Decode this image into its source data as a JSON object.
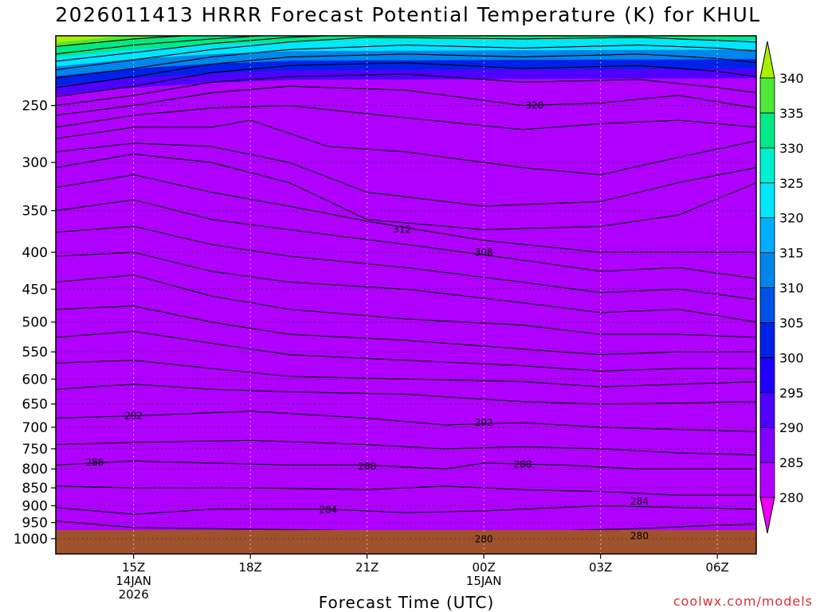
{
  "title": "2026011413 HRRR Forecast Potential Temperature (K) for KHUL",
  "credit": "coolwx.com/models",
  "chart_data": {
    "type": "contour",
    "xlabel": "Forecast Time (UTC)",
    "ylabel": "",
    "x_ticks": [
      {
        "lines": [
          "15Z",
          "14JAN",
          "2026"
        ],
        "hours": 14.0
      },
      {
        "lines": [
          "18Z"
        ],
        "hours": 17.0
      },
      {
        "lines": [
          "21Z"
        ],
        "hours": 20.0
      },
      {
        "lines": [
          "00Z",
          "15JAN"
        ],
        "hours": 23.0
      },
      {
        "lines": [
          "03Z"
        ],
        "hours": 26.0
      },
      {
        "lines": [
          "06Z"
        ],
        "hours": 29.0
      }
    ],
    "xlim_hours": [
      12.0,
      30.0
    ],
    "y_axis": "pressure (hPa), log scale, inverted",
    "y_ticks": [
      250,
      300,
      350,
      400,
      450,
      500,
      550,
      600,
      650,
      700,
      750,
      800,
      850,
      900,
      950,
      1000
    ],
    "ylim": [
      1050,
      200
    ],
    "grid": "dotted",
    "ground_color": "#a0522d",
    "levels": [
      280,
      285,
      290,
      295,
      300,
      305,
      310,
      315,
      320,
      325,
      330,
      335,
      340
    ],
    "colorbar_labels": [
      "280",
      "285",
      "290",
      "295",
      "300",
      "305",
      "310",
      "315",
      "320",
      "325",
      "330",
      "335",
      "340"
    ],
    "colors": [
      "#ee00ff",
      "#b000ff",
      "#8200ff",
      "#5000ff",
      "#1f00ff",
      "#0022e8",
      "#0052e6",
      "#0085ea",
      "#00aeff",
      "#00e6ff",
      "#00f0d2",
      "#00ea87",
      "#4de83a",
      "#a8f000"
    ],
    "isentropes": [
      {
        "theta": 280,
        "points": [
          [
            12,
            982
          ],
          [
            13,
            990
          ],
          [
            14,
            997
          ],
          [
            16,
            1000
          ],
          [
            20,
            1002
          ],
          [
            23,
            1002
          ],
          [
            26,
            999
          ],
          [
            28,
            995
          ],
          [
            29,
            985
          ],
          [
            30,
            982
          ]
        ]
      },
      {
        "theta": 282,
        "points": [
          [
            12,
            945
          ],
          [
            14,
            965
          ],
          [
            17,
            970
          ],
          [
            20,
            975
          ],
          [
            23,
            978
          ],
          [
            25,
            975
          ],
          [
            27,
            968
          ],
          [
            29,
            958
          ],
          [
            30,
            955
          ]
        ]
      },
      {
        "theta": 284,
        "points": [
          [
            12,
            905
          ],
          [
            14,
            925
          ],
          [
            16,
            910
          ],
          [
            19,
            910
          ],
          [
            21,
            920
          ],
          [
            23,
            915
          ],
          [
            26,
            900
          ],
          [
            28,
            905
          ],
          [
            30,
            910
          ]
        ]
      },
      {
        "theta": 286,
        "points": [
          [
            12,
            845
          ],
          [
            14,
            850
          ],
          [
            17,
            850
          ],
          [
            20,
            855
          ],
          [
            22,
            845
          ],
          [
            24,
            855
          ],
          [
            26,
            860
          ],
          [
            28,
            870
          ],
          [
            30,
            870
          ]
        ]
      },
      {
        "theta": 288,
        "points": [
          [
            12,
            790
          ],
          [
            14,
            780
          ],
          [
            16,
            785
          ],
          [
            18,
            790
          ],
          [
            20,
            790
          ],
          [
            22,
            800
          ],
          [
            23,
            785
          ],
          [
            25,
            790
          ],
          [
            27,
            800
          ],
          [
            30,
            800
          ]
        ]
      },
      {
        "theta": 290,
        "points": [
          [
            12,
            740
          ],
          [
            14,
            735
          ],
          [
            17,
            730
          ],
          [
            20,
            740
          ],
          [
            22,
            750
          ],
          [
            24,
            745
          ],
          [
            26,
            750
          ],
          [
            28,
            760
          ],
          [
            30,
            765
          ]
        ]
      },
      {
        "theta": 292,
        "points": [
          [
            12,
            680
          ],
          [
            14,
            675
          ],
          [
            17,
            665
          ],
          [
            20,
            680
          ],
          [
            22,
            695
          ],
          [
            24,
            690
          ],
          [
            26,
            700
          ],
          [
            28,
            705
          ],
          [
            30,
            710
          ]
        ]
      },
      {
        "theta": 294,
        "points": [
          [
            12,
            620
          ],
          [
            14,
            610
          ],
          [
            16,
            620
          ],
          [
            18,
            625
          ],
          [
            21,
            630
          ],
          [
            24,
            645
          ],
          [
            26,
            650
          ],
          [
            28,
            648
          ],
          [
            30,
            645
          ]
        ]
      },
      {
        "theta": 296,
        "points": [
          [
            12,
            570
          ],
          [
            14,
            565
          ],
          [
            16,
            580
          ],
          [
            18,
            595
          ],
          [
            21,
            600
          ],
          [
            24,
            605
          ],
          [
            26,
            615
          ],
          [
            28,
            610
          ],
          [
            30,
            605
          ]
        ]
      },
      {
        "theta": 298,
        "points": [
          [
            12,
            525
          ],
          [
            14,
            515
          ],
          [
            16,
            535
          ],
          [
            18,
            555
          ],
          [
            21,
            565
          ],
          [
            24,
            575
          ],
          [
            26,
            585
          ],
          [
            28,
            580
          ],
          [
            30,
            580
          ]
        ]
      },
      {
        "theta": 300,
        "points": [
          [
            12,
            480
          ],
          [
            14,
            475
          ],
          [
            16,
            500
          ],
          [
            18,
            520
          ],
          [
            21,
            530
          ],
          [
            24,
            545
          ],
          [
            26,
            555
          ],
          [
            28,
            550
          ],
          [
            30,
            550
          ]
        ]
      },
      {
        "theta": 302,
        "points": [
          [
            12,
            440
          ],
          [
            14,
            430
          ],
          [
            16,
            460
          ],
          [
            18,
            480
          ],
          [
            21,
            495
          ],
          [
            24,
            505
          ],
          [
            26,
            520
          ],
          [
            28,
            520
          ],
          [
            30,
            525
          ]
        ]
      },
      {
        "theta": 304,
        "points": [
          [
            12,
            405
          ],
          [
            14,
            400
          ],
          [
            16,
            425
          ],
          [
            18,
            440
          ],
          [
            21,
            450
          ],
          [
            24,
            470
          ],
          [
            26,
            485
          ],
          [
            28,
            480
          ],
          [
            30,
            500
          ]
        ]
      },
      {
        "theta": 306,
        "points": [
          [
            12,
            375
          ],
          [
            14,
            368
          ],
          [
            16,
            390
          ],
          [
            18,
            405
          ],
          [
            21,
            420
          ],
          [
            24,
            440
          ],
          [
            26,
            455
          ],
          [
            28,
            450
          ],
          [
            30,
            465
          ]
        ]
      },
      {
        "theta": 308,
        "points": [
          [
            12,
            350
          ],
          [
            14,
            338
          ],
          [
            16,
            360
          ],
          [
            18,
            372
          ],
          [
            21,
            390
          ],
          [
            24,
            410
          ],
          [
            26,
            425
          ],
          [
            28,
            420
          ],
          [
            30,
            435
          ]
        ]
      },
      {
        "theta": 310,
        "points": [
          [
            12,
            325
          ],
          [
            14,
            312
          ],
          [
            16,
            330
          ],
          [
            18,
            345
          ],
          [
            20,
            362
          ],
          [
            23,
            385
          ],
          [
            26,
            400
          ],
          [
            28,
            400
          ],
          [
            30,
            400
          ]
        ]
      },
      {
        "theta": 312,
        "points": [
          [
            12,
            305
          ],
          [
            14,
            292
          ],
          [
            16,
            300
          ],
          [
            18,
            320
          ],
          [
            20,
            360
          ],
          [
            23,
            372
          ],
          [
            26,
            368
          ],
          [
            28,
            355
          ],
          [
            30,
            320
          ]
        ]
      },
      {
        "theta": 314,
        "points": [
          [
            12,
            290
          ],
          [
            14,
            282
          ],
          [
            16,
            285
          ],
          [
            18,
            300
          ],
          [
            20,
            330
          ],
          [
            23,
            345
          ],
          [
            26,
            340
          ],
          [
            28,
            320
          ],
          [
            30,
            305
          ]
        ]
      },
      {
        "theta": 316,
        "points": [
          [
            12,
            278
          ],
          [
            14,
            268
          ],
          [
            16,
            268
          ],
          [
            17,
            262
          ],
          [
            19,
            285
          ],
          [
            21,
            290
          ],
          [
            24,
            305
          ],
          [
            26,
            312
          ],
          [
            28,
            295
          ],
          [
            30,
            280
          ]
        ]
      },
      {
        "theta": 318,
        "points": [
          [
            12,
            268
          ],
          [
            14,
            258
          ],
          [
            16,
            252
          ],
          [
            18,
            250
          ],
          [
            21,
            260
          ],
          [
            24,
            270
          ],
          [
            26,
            265
          ],
          [
            28,
            262
          ],
          [
            30,
            268
          ]
        ]
      },
      {
        "theta": 320,
        "points": [
          [
            12,
            258
          ],
          [
            14,
            250
          ],
          [
            16,
            240
          ],
          [
            18,
            235
          ],
          [
            21,
            238
          ],
          [
            24,
            250
          ],
          [
            26,
            248
          ],
          [
            28,
            242
          ],
          [
            30,
            252
          ]
        ]
      },
      {
        "theta": 322,
        "points": [
          [
            12,
            250
          ],
          [
            14,
            242
          ],
          [
            16,
            232
          ],
          [
            18,
            228
          ],
          [
            21,
            226
          ],
          [
            24,
            232
          ],
          [
            27,
            230
          ],
          [
            29,
            236
          ],
          [
            30,
            240
          ]
        ]
      },
      {
        "theta": 324,
        "points": [
          [
            12,
            243
          ],
          [
            14,
            235
          ],
          [
            16,
            225
          ],
          [
            18,
            220
          ],
          [
            21,
            218
          ],
          [
            24,
            222
          ],
          [
            27,
            220
          ],
          [
            29,
            224
          ],
          [
            30,
            228
          ]
        ]
      },
      {
        "theta": 326,
        "points": [
          [
            12,
            236
          ],
          [
            14,
            228
          ],
          [
            16,
            219
          ],
          [
            18,
            214
          ],
          [
            21,
            212
          ],
          [
            24,
            214
          ],
          [
            27,
            212
          ],
          [
            29,
            215
          ],
          [
            30,
            218
          ]
        ]
      },
      {
        "theta": 328,
        "points": [
          [
            12,
            229
          ],
          [
            14,
            222
          ],
          [
            16,
            214
          ],
          [
            18,
            209
          ],
          [
            21,
            206
          ],
          [
            24,
            208
          ],
          [
            27,
            206
          ],
          [
            29,
            208
          ],
          [
            30,
            210
          ]
        ]
      },
      {
        "theta": 330,
        "points": [
          [
            12,
            223
          ],
          [
            14,
            216
          ],
          [
            16,
            209
          ],
          [
            18,
            204
          ],
          [
            20,
            201
          ],
          [
            24,
            202
          ],
          [
            27,
            201
          ],
          [
            30,
            204
          ]
        ]
      },
      {
        "theta": 332,
        "points": [
          [
            12,
            217
          ],
          [
            14,
            211
          ],
          [
            16,
            205
          ],
          [
            18,
            201
          ],
          [
            20,
            199
          ],
          [
            30,
            199
          ]
        ]
      },
      {
        "theta": 334,
        "points": [
          [
            12,
            212
          ],
          [
            14,
            206
          ],
          [
            16,
            202
          ],
          [
            18,
            199
          ],
          [
            20,
            197
          ],
          [
            30,
            197
          ]
        ]
      },
      {
        "theta": 336,
        "points": [
          [
            12,
            207
          ],
          [
            14,
            202
          ],
          [
            16,
            199
          ],
          [
            18,
            197
          ],
          [
            30,
            196
          ]
        ]
      }
    ],
    "contour_labels": [
      {
        "text": "320",
        "hours": 24.3,
        "p": 250
      },
      {
        "text": "312",
        "hours": 20.9,
        "p": 372
      },
      {
        "text": "308",
        "hours": 23.0,
        "p": 400
      },
      {
        "text": "292",
        "hours": 14.0,
        "p": 675
      },
      {
        "text": "292",
        "hours": 23.0,
        "p": 690
      },
      {
        "text": "288",
        "hours": 13.0,
        "p": 783
      },
      {
        "text": "288",
        "hours": 20.0,
        "p": 793
      },
      {
        "text": "288",
        "hours": 24.0,
        "p": 788
      },
      {
        "text": "284",
        "hours": 19.0,
        "p": 912
      },
      {
        "text": "284",
        "hours": 27.0,
        "p": 888
      },
      {
        "text": "280",
        "hours": 23.0,
        "p": 1002
      },
      {
        "text": "280",
        "hours": 27.0,
        "p": 992
      }
    ]
  }
}
